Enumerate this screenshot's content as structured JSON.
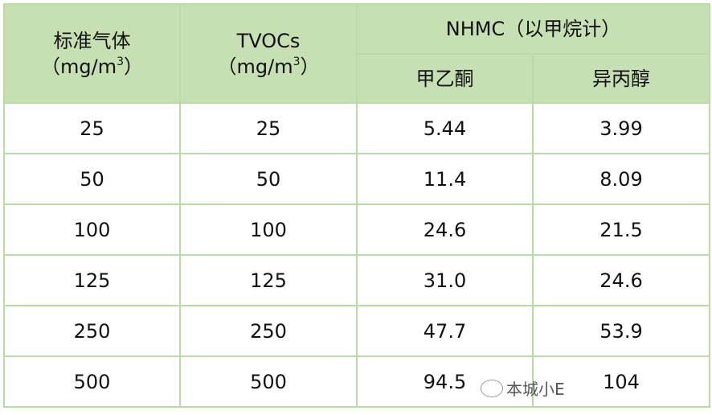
{
  "headers": {
    "col1": {
      "line1": "标准气体",
      "unit": "（mg/m",
      "sup": "3",
      "close": "）"
    },
    "col2": {
      "line1": "TVOCs",
      "unit": "（mg/m",
      "sup": "3",
      "close": "）"
    },
    "group": "NHMC（以甲烷计）",
    "sub1": "甲乙酮",
    "sub2": "异丙醇"
  },
  "rows": [
    [
      "25",
      "25",
      "5.44",
      "3.99"
    ],
    [
      "50",
      "50",
      "11.4",
      "8.09"
    ],
    [
      "100",
      "100",
      "24.6",
      "21.5"
    ],
    [
      "125",
      "125",
      "31.0",
      "24.6"
    ],
    [
      "250",
      "250",
      "47.7",
      "53.9"
    ],
    [
      "500",
      "500",
      "94.5",
      "104"
    ]
  ],
  "watermark": "本城小E",
  "colors": {
    "header_bg": "#c6e0b4",
    "border": "#b9dba5"
  }
}
